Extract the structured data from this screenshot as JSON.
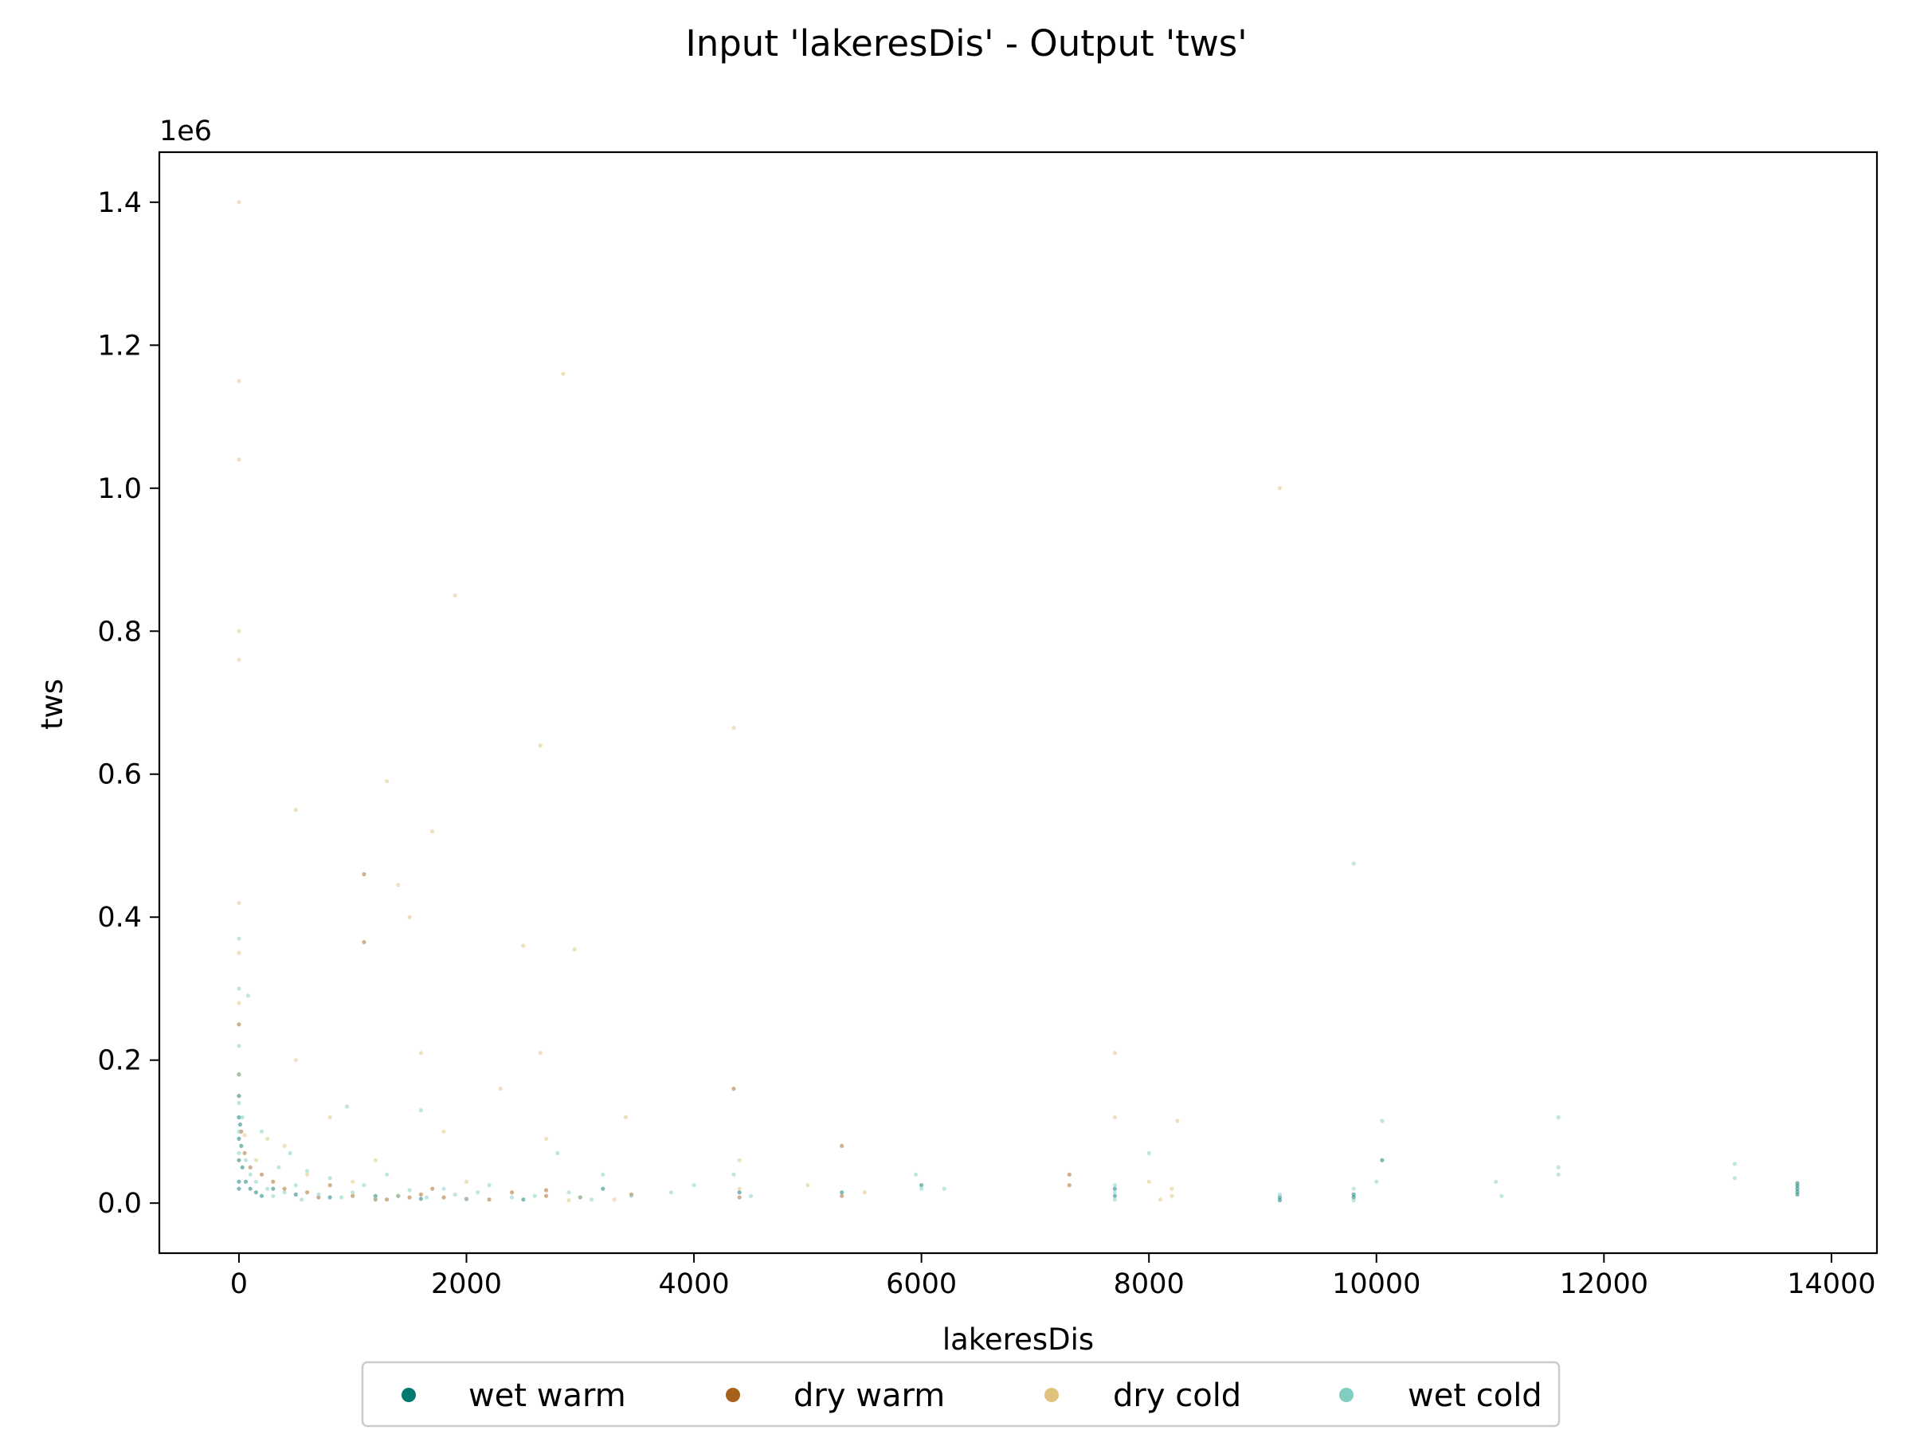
{
  "chart_data": {
    "type": "scatter",
    "title": "Input 'lakeresDis' - Output 'tws'",
    "xlabel": "lakeresDis",
    "ylabel": "tws",
    "y_offset_label": "1e6",
    "xlim": [
      -700,
      14400
    ],
    "ylim": [
      -70000,
      1470000
    ],
    "x_ticks": [
      0,
      2000,
      4000,
      6000,
      8000,
      10000,
      12000,
      14000
    ],
    "x_tick_labels": [
      "0",
      "2000",
      "4000",
      "6000",
      "8000",
      "10000",
      "12000",
      "14000"
    ],
    "y_ticks": [
      0,
      200000,
      400000,
      600000,
      800000,
      1000000,
      1200000,
      1400000
    ],
    "y_tick_labels": [
      "0.0",
      "0.2",
      "0.4",
      "0.6",
      "0.8",
      "1.0",
      "1.2",
      "1.4"
    ],
    "legend_position": "bottom-center-below",
    "grid": false,
    "series": [
      {
        "name": "wet warm",
        "color": "#01796f",
        "points": [
          [
            0,
            150000
          ],
          [
            0,
            120000
          ],
          [
            0,
            90000
          ],
          [
            0,
            60000
          ],
          [
            0,
            30000
          ],
          [
            0,
            20000
          ],
          [
            10,
            110000
          ],
          [
            20,
            80000
          ],
          [
            30,
            50000
          ],
          [
            60,
            30000
          ],
          [
            100,
            20000
          ],
          [
            150,
            15000
          ],
          [
            200,
            10000
          ],
          [
            300,
            20000
          ],
          [
            500,
            12000
          ],
          [
            800,
            8000
          ],
          [
            1200,
            10000
          ],
          [
            1600,
            6000
          ],
          [
            2500,
            5000
          ],
          [
            3200,
            20000
          ],
          [
            4400,
            15000
          ],
          [
            5300,
            15000
          ],
          [
            6000,
            25000
          ],
          [
            7700,
            10000
          ],
          [
            9150,
            8000
          ],
          [
            9800,
            8000
          ],
          [
            10050,
            60000
          ],
          [
            13700,
            28000
          ],
          [
            13700,
            24000
          ],
          [
            13700,
            20000
          ],
          [
            13700,
            16000
          ],
          [
            13700,
            12000
          ],
          [
            9800,
            12000
          ],
          [
            9150,
            4000
          ],
          [
            7700,
            20000
          ]
        ]
      },
      {
        "name": "dry warm",
        "color": "#a6611a",
        "points": [
          [
            0,
            250000
          ],
          [
            0,
            180000
          ],
          [
            20,
            100000
          ],
          [
            50,
            70000
          ],
          [
            100,
            50000
          ],
          [
            200,
            40000
          ],
          [
            300,
            30000
          ],
          [
            400,
            20000
          ],
          [
            600,
            15000
          ],
          [
            800,
            25000
          ],
          [
            1000,
            10000
          ],
          [
            1100,
            365000
          ],
          [
            1100,
            460000
          ],
          [
            1300,
            5000
          ],
          [
            1400,
            10000
          ],
          [
            1500,
            8000
          ],
          [
            1600,
            12000
          ],
          [
            1700,
            20000
          ],
          [
            1800,
            8000
          ],
          [
            2000,
            6000
          ],
          [
            2200,
            5000
          ],
          [
            2700,
            10000
          ],
          [
            2700,
            18000
          ],
          [
            3000,
            8000
          ],
          [
            3450,
            12000
          ],
          [
            4350,
            160000
          ],
          [
            4400,
            8000
          ],
          [
            5300,
            80000
          ],
          [
            5300,
            10000
          ],
          [
            7300,
            40000
          ],
          [
            7300,
            25000
          ],
          [
            700,
            8000
          ],
          [
            1200,
            5000
          ],
          [
            2400,
            15000
          ]
        ]
      },
      {
        "name": "dry cold",
        "color": "#dfc27d",
        "points": [
          [
            0,
            1400000
          ],
          [
            0,
            1150000
          ],
          [
            0,
            1040000
          ],
          [
            0,
            800000
          ],
          [
            0,
            760000
          ],
          [
            0,
            420000
          ],
          [
            0,
            350000
          ],
          [
            0,
            280000
          ],
          [
            50,
            95000
          ],
          [
            150,
            60000
          ],
          [
            250,
            90000
          ],
          [
            400,
            80000
          ],
          [
            500,
            550000
          ],
          [
            500,
            200000
          ],
          [
            600,
            40000
          ],
          [
            800,
            120000
          ],
          [
            1000,
            30000
          ],
          [
            1200,
            60000
          ],
          [
            1300,
            590000
          ],
          [
            1400,
            445000
          ],
          [
            1500,
            400000
          ],
          [
            1600,
            210000
          ],
          [
            1700,
            520000
          ],
          [
            1800,
            100000
          ],
          [
            1900,
            850000
          ],
          [
            2000,
            30000
          ],
          [
            2300,
            160000
          ],
          [
            2500,
            360000
          ],
          [
            2650,
            640000
          ],
          [
            2650,
            210000
          ],
          [
            2700,
            90000
          ],
          [
            2850,
            1160000
          ],
          [
            2950,
            355000
          ],
          [
            3400,
            120000
          ],
          [
            4350,
            665000
          ],
          [
            4400,
            60000
          ],
          [
            4400,
            20000
          ],
          [
            5000,
            25000
          ],
          [
            5500,
            15000
          ],
          [
            7700,
            210000
          ],
          [
            7700,
            120000
          ],
          [
            8000,
            30000
          ],
          [
            8100,
            5000
          ],
          [
            8200,
            20000
          ],
          [
            8250,
            115000
          ],
          [
            9150,
            1000000
          ],
          [
            8200,
            10000
          ],
          [
            3300,
            5000
          ],
          [
            2900,
            4000
          ]
        ]
      },
      {
        "name": "wet cold",
        "color": "#80cdc1",
        "points": [
          [
            0,
            370000
          ],
          [
            0,
            300000
          ],
          [
            0,
            220000
          ],
          [
            0,
            180000
          ],
          [
            0,
            140000
          ],
          [
            0,
            100000
          ],
          [
            0,
            70000
          ],
          [
            30,
            120000
          ],
          [
            60,
            60000
          ],
          [
            80,
            290000
          ],
          [
            100,
            40000
          ],
          [
            150,
            30000
          ],
          [
            200,
            100000
          ],
          [
            250,
            20000
          ],
          [
            300,
            10000
          ],
          [
            350,
            50000
          ],
          [
            400,
            15000
          ],
          [
            450,
            70000
          ],
          [
            500,
            25000
          ],
          [
            550,
            5000
          ],
          [
            600,
            45000
          ],
          [
            700,
            12000
          ],
          [
            800,
            35000
          ],
          [
            900,
            8000
          ],
          [
            950,
            135000
          ],
          [
            1000,
            15000
          ],
          [
            1100,
            25000
          ],
          [
            1200,
            6000
          ],
          [
            1300,
            40000
          ],
          [
            1400,
            10000
          ],
          [
            1500,
            18000
          ],
          [
            1600,
            130000
          ],
          [
            1650,
            8000
          ],
          [
            1800,
            20000
          ],
          [
            1900,
            12000
          ],
          [
            2000,
            5000
          ],
          [
            2100,
            15000
          ],
          [
            2200,
            25000
          ],
          [
            2400,
            8000
          ],
          [
            2600,
            10000
          ],
          [
            2800,
            70000
          ],
          [
            2900,
            15000
          ],
          [
            3000,
            8000
          ],
          [
            3200,
            40000
          ],
          [
            3450,
            10000
          ],
          [
            3800,
            15000
          ],
          [
            4000,
            25000
          ],
          [
            4350,
            40000
          ],
          [
            4500,
            10000
          ],
          [
            5950,
            40000
          ],
          [
            6000,
            20000
          ],
          [
            6200,
            20000
          ],
          [
            7700,
            25000
          ],
          [
            7700,
            15000
          ],
          [
            7700,
            5000
          ],
          [
            8000,
            70000
          ],
          [
            9150,
            12000
          ],
          [
            9800,
            20000
          ],
          [
            9800,
            4000
          ],
          [
            10000,
            30000
          ],
          [
            10050,
            115000
          ],
          [
            11050,
            30000
          ],
          [
            11100,
            10000
          ],
          [
            11600,
            120000
          ],
          [
            11600,
            50000
          ],
          [
            11600,
            40000
          ],
          [
            13150,
            55000
          ],
          [
            13150,
            35000
          ],
          [
            9800,
            475000
          ],
          [
            3100,
            5000
          ]
        ]
      }
    ]
  }
}
